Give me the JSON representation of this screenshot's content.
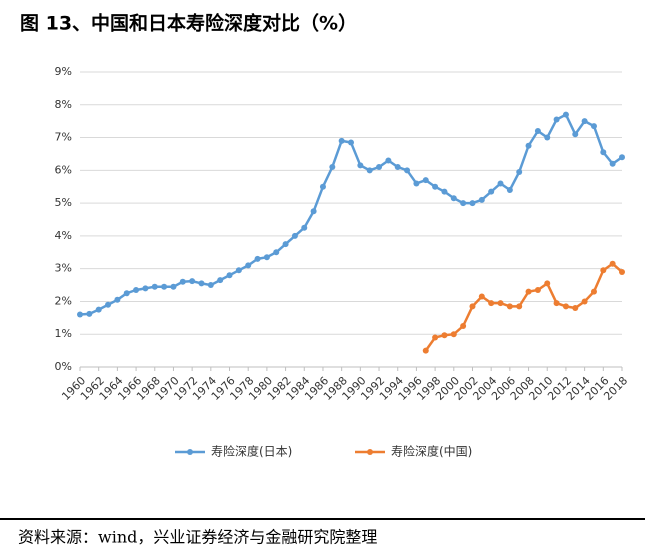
{
  "chart_data": {
    "type": "line",
    "title": "图 13、中国和日本寿险深度对比（%）",
    "source": "资料来源：wind，兴业证券经济与金融研究院整理",
    "x": [
      1960,
      1961,
      1962,
      1963,
      1964,
      1965,
      1966,
      1967,
      1968,
      1969,
      1970,
      1971,
      1972,
      1973,
      1974,
      1975,
      1976,
      1977,
      1978,
      1979,
      1980,
      1981,
      1982,
      1983,
      1984,
      1985,
      1986,
      1987,
      1988,
      1989,
      1990,
      1991,
      1992,
      1993,
      1994,
      1995,
      1996,
      1997,
      1998,
      1999,
      2000,
      2001,
      2002,
      2003,
      2004,
      2005,
      2006,
      2007,
      2008,
      2009,
      2010,
      2011,
      2012,
      2013,
      2014,
      2015,
      2016,
      2017,
      2018
    ],
    "xlim": [
      1960,
      2018
    ],
    "xticks": [
      1960,
      1962,
      1964,
      1966,
      1968,
      1970,
      1972,
      1974,
      1976,
      1978,
      1980,
      1982,
      1984,
      1986,
      1988,
      1990,
      1992,
      1994,
      1996,
      1998,
      2000,
      2002,
      2004,
      2006,
      2008,
      2010,
      2012,
      2014,
      2016,
      2018
    ],
    "ylim": [
      0,
      9
    ],
    "yticks": [
      {
        "value": 0,
        "label": "0%"
      },
      {
        "value": 1,
        "label": "1%"
      },
      {
        "value": 2,
        "label": "2%"
      },
      {
        "value": 3,
        "label": "3%"
      },
      {
        "value": 4,
        "label": "4%"
      },
      {
        "value": 5,
        "label": "5%"
      },
      {
        "value": 6,
        "label": "6%"
      },
      {
        "value": 7,
        "label": "7%"
      },
      {
        "value": 8,
        "label": "8%"
      },
      {
        "value": 9,
        "label": "9%"
      }
    ],
    "grid": true,
    "legend": "bottom",
    "series": [
      {
        "name": "寿险深度(日本)",
        "color": "#5b9bd5",
        "values": [
          1.6,
          1.62,
          1.75,
          1.9,
          2.05,
          2.25,
          2.35,
          2.4,
          2.45,
          2.45,
          2.45,
          2.6,
          2.62,
          2.55,
          2.5,
          2.65,
          2.8,
          2.95,
          3.1,
          3.3,
          3.35,
          3.5,
          3.75,
          4.0,
          4.25,
          4.75,
          5.5,
          6.1,
          6.9,
          6.85,
          6.15,
          6.0,
          6.1,
          6.3,
          6.1,
          6.0,
          5.6,
          5.7,
          5.5,
          5.35,
          5.15,
          5.0,
          5.0,
          5.1,
          5.35,
          5.6,
          5.4,
          5.95,
          6.75,
          7.2,
          7.0,
          7.55,
          7.7,
          7.1,
          7.5,
          7.35,
          6.55,
          6.2,
          6.4
        ]
      },
      {
        "name": "寿险深度(中国)",
        "color": "#ed7d31",
        "values": [
          null,
          null,
          null,
          null,
          null,
          null,
          null,
          null,
          null,
          null,
          null,
          null,
          null,
          null,
          null,
          null,
          null,
          null,
          null,
          null,
          null,
          null,
          null,
          null,
          null,
          null,
          null,
          null,
          null,
          null,
          null,
          null,
          null,
          null,
          null,
          null,
          null,
          0.5,
          0.9,
          0.97,
          1.0,
          1.25,
          1.85,
          2.15,
          1.95,
          1.95,
          1.85,
          1.85,
          2.3,
          2.35,
          2.55,
          1.95,
          1.85,
          1.8,
          2.0,
          2.3,
          2.95,
          3.15,
          2.9
        ]
      }
    ]
  }
}
